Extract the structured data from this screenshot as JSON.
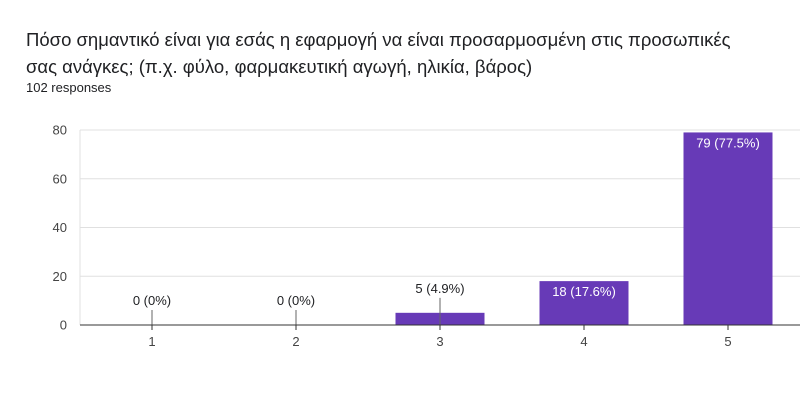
{
  "question": {
    "title": "Πόσο σημαντικό είναι για εσάς η εφαρμογή να είναι προσαρμοσμένη στις προσωπικές σας ανάγκες; (π.χ. φύλο, φαρμακευτική αγωγή, ηλικία, βάρος)",
    "responses": "102 responses"
  },
  "colors": {
    "bar": "#673ab7",
    "grid": "#e0e0e0",
    "axis": "#333333"
  },
  "chart_data": {
    "type": "bar",
    "categories": [
      "1",
      "2",
      "3",
      "4",
      "5"
    ],
    "values": [
      0,
      0,
      5,
      18,
      79
    ],
    "labels": [
      "0 (0%)",
      "0 (0%)",
      "5 (4.9%)",
      "18 (17.6%)",
      "79 (77.5%)"
    ],
    "yticks": [
      0,
      20,
      40,
      60,
      80
    ],
    "ylim": [
      0,
      80
    ],
    "grid": true,
    "title": "",
    "xlabel": "",
    "ylabel": ""
  }
}
